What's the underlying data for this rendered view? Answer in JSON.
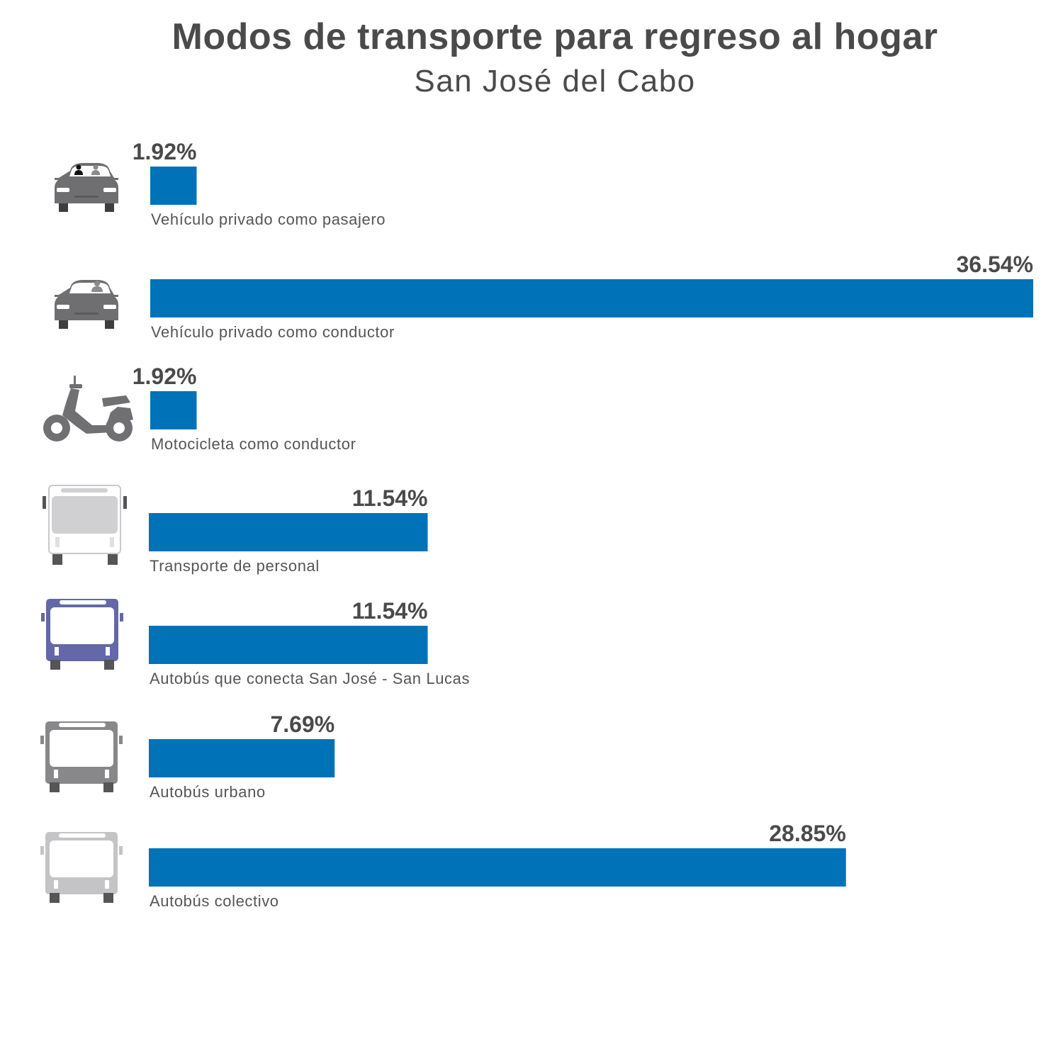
{
  "chart_title": "Modos de transporte para regreso al hogar",
  "chart_subtitle": "San José del Cabo",
  "colors": {
    "bar": "#0072b8",
    "text": "#4a4a4a",
    "label": "#555555"
  },
  "icons": [
    "car-passenger-icon",
    "car-driver-icon",
    "motorcycle-icon",
    "staff-bus-icon",
    "intercity-bus-icon",
    "urban-bus-icon",
    "collective-bus-icon"
  ],
  "chart_data": {
    "type": "bar",
    "orientation": "horizontal",
    "categories": [
      "Vehículo privado como pasajero",
      "Vehículo privado como conductor",
      "Motocicleta como conductor",
      "Transporte de personal",
      "Autobús que conecta San José - San Lucas",
      "Autobús urbano",
      "Autobús colectivo"
    ],
    "values": [
      1.92,
      36.54,
      1.92,
      11.54,
      11.54,
      7.69,
      28.85
    ],
    "value_labels": [
      "1.92%",
      "36.54%",
      "1.92%",
      "11.54%",
      "11.54%",
      "7.69%",
      "28.85%"
    ],
    "title": "Modos de transporte para regreso al hogar",
    "subtitle": "San José del Cabo",
    "xlabel": "",
    "ylabel": "",
    "grid": false
  }
}
